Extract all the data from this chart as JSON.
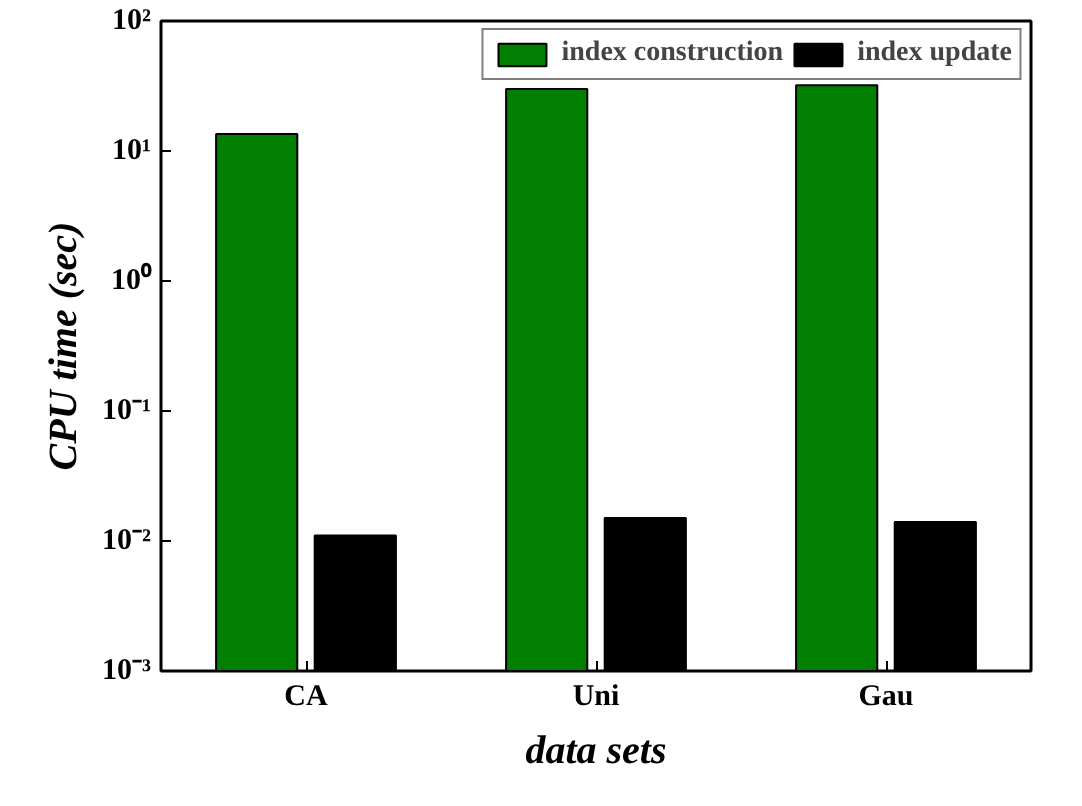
{
  "chart_data": {
    "type": "bar",
    "xlabel": "data sets",
    "ylabel": "CPU time (sec)",
    "categories": [
      "CA",
      "Uni",
      "Gau"
    ],
    "series": [
      {
        "name": "index construction",
        "color": "#007f00",
        "values": [
          13.5,
          30,
          32
        ]
      },
      {
        "name": "index update",
        "color": "#000000",
        "values": [
          0.011,
          0.015,
          0.014
        ]
      }
    ],
    "log": true,
    "ylim": [
      0.001,
      100
    ],
    "yticks": [
      {
        "value": 0.001,
        "label": "10⁻³"
      },
      {
        "value": 0.01,
        "label": "10⁻²"
      },
      {
        "value": 0.1,
        "label": "10⁻¹"
      },
      {
        "value": 1,
        "label": "10⁰"
      },
      {
        "value": 10,
        "label": "10¹"
      },
      {
        "value": 100,
        "label": "10²"
      }
    ],
    "legend": "top"
  }
}
